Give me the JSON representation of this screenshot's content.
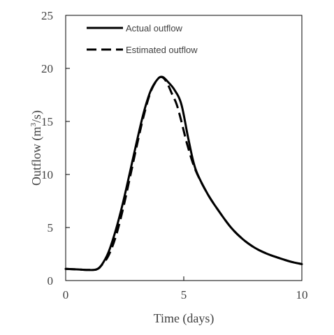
{
  "chart_data": {
    "type": "line",
    "xlabel": "Time (days)",
    "ylabel_main": "Outflow (m",
    "ylabel_sup": "3",
    "ylabel_end": "/s)",
    "xlim": [
      0,
      10
    ],
    "ylim": [
      0,
      25
    ],
    "xticks": [
      0,
      5,
      10
    ],
    "yticks": [
      0,
      5,
      10,
      15,
      20,
      25
    ],
    "grid": false,
    "legend_position": "top-left",
    "series": [
      {
        "name": "Actual outflow",
        "style": "solid",
        "color": "#000000",
        "points": [
          [
            0,
            1.1
          ],
          [
            0.5,
            1.05
          ],
          [
            1.0,
            1.0
          ],
          [
            1.3,
            1.05
          ],
          [
            1.5,
            1.4
          ],
          [
            1.8,
            2.6
          ],
          [
            2.1,
            4.6
          ],
          [
            2.4,
            7.1
          ],
          [
            2.7,
            10.0
          ],
          [
            3.0,
            13.0
          ],
          [
            3.3,
            15.8
          ],
          [
            3.6,
            17.9
          ],
          [
            3.9,
            19.0
          ],
          [
            4.1,
            19.2
          ],
          [
            4.3,
            18.8
          ],
          [
            4.6,
            18.0
          ],
          [
            4.9,
            16.6
          ],
          [
            5.2,
            13.3
          ],
          [
            5.5,
            10.5
          ],
          [
            6.0,
            8.2
          ],
          [
            6.5,
            6.5
          ],
          [
            7.0,
            5.0
          ],
          [
            7.5,
            3.9
          ],
          [
            8.0,
            3.1
          ],
          [
            8.5,
            2.55
          ],
          [
            9.0,
            2.15
          ],
          [
            9.5,
            1.8
          ],
          [
            10.0,
            1.55
          ]
        ]
      },
      {
        "name": "Estimated outflow",
        "style": "dashed",
        "color": "#000000",
        "points": [
          [
            0,
            1.1
          ],
          [
            0.5,
            1.05
          ],
          [
            1.0,
            1.0
          ],
          [
            1.3,
            1.05
          ],
          [
            1.5,
            1.4
          ],
          [
            1.8,
            2.3
          ],
          [
            2.1,
            4.0
          ],
          [
            2.4,
            6.5
          ],
          [
            2.7,
            9.5
          ],
          [
            3.0,
            12.6
          ],
          [
            3.3,
            15.5
          ],
          [
            3.6,
            17.8
          ],
          [
            3.9,
            19.0
          ],
          [
            4.1,
            19.15
          ],
          [
            4.3,
            18.6
          ],
          [
            4.5,
            17.6
          ],
          [
            4.7,
            16.6
          ],
          [
            4.9,
            15.0
          ],
          [
            5.15,
            12.8
          ],
          [
            5.5,
            10.4
          ],
          [
            6.0,
            8.2
          ],
          [
            6.5,
            6.5
          ],
          [
            7.0,
            5.0
          ],
          [
            7.5,
            3.9
          ],
          [
            8.0,
            3.1
          ],
          [
            8.5,
            2.55
          ],
          [
            9.0,
            2.15
          ],
          [
            9.5,
            1.8
          ],
          [
            10.0,
            1.55
          ]
        ]
      }
    ]
  }
}
